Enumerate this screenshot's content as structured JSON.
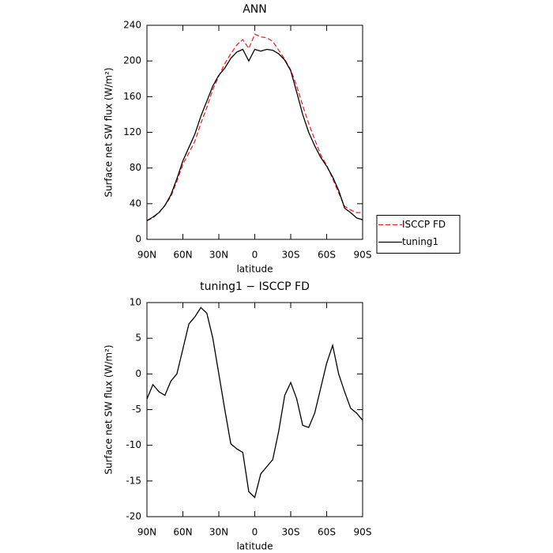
{
  "chart_data": [
    {
      "type": "line",
      "title": "ANN",
      "xlabel": "latitude",
      "ylabel": "Surface net SW flux (W/m²)",
      "x": [
        90,
        85,
        80,
        75,
        70,
        65,
        60,
        55,
        50,
        45,
        40,
        35,
        30,
        25,
        20,
        15,
        10,
        5,
        0,
        -5,
        -10,
        -15,
        -20,
        -25,
        -30,
        -35,
        -40,
        -45,
        -50,
        -55,
        -60,
        -65,
        -70,
        -75,
        -80,
        -85,
        -90
      ],
      "series": [
        {
          "name": "ISCCP FD",
          "color": "#e8282b",
          "style": "dashed",
          "values": [
            21,
            24,
            30,
            38,
            48,
            65,
            84,
            97,
            110,
            130,
            148,
            168,
            183,
            197,
            208,
            218,
            224,
            214,
            230,
            227,
            226,
            222,
            212,
            202,
            190,
            172,
            150,
            130,
            112,
            95,
            83,
            68,
            52,
            37,
            33,
            30,
            30
          ]
        },
        {
          "name": "tuning1",
          "color": "#000000",
          "style": "solid",
          "values": [
            21,
            25,
            30,
            38,
            50,
            68,
            88,
            103,
            118,
            138,
            155,
            172,
            184,
            192,
            203,
            210,
            213,
            200,
            213,
            211,
            213,
            212,
            208,
            201,
            189,
            165,
            140,
            120,
            105,
            92,
            82,
            70,
            55,
            35,
            30,
            24,
            22
          ]
        }
      ],
      "xlim": [
        90,
        -90
      ],
      "xticks": [
        {
          "value": 90,
          "label": "90N"
        },
        {
          "value": 60,
          "label": "60N"
        },
        {
          "value": 30,
          "label": "30N"
        },
        0,
        {
          "value": -30,
          "label": "30S"
        },
        {
          "value": -60,
          "label": "60S"
        },
        {
          "value": -90,
          "label": "90S"
        }
      ],
      "ylim": [
        0,
        240
      ],
      "yticks": [
        0,
        40,
        80,
        120,
        160,
        200,
        240
      ],
      "legend": "right"
    },
    {
      "type": "line",
      "title": "tuning1 − ISCCP FD",
      "xlabel": "latitude",
      "ylabel": "Surface net SW flux (W/m²)",
      "x": [
        90,
        85,
        80,
        75,
        70,
        65,
        60,
        55,
        50,
        45,
        40,
        35,
        30,
        25,
        20,
        15,
        10,
        5,
        0,
        -5,
        -10,
        -15,
        -20,
        -25,
        -30,
        -35,
        -40,
        -45,
        -50,
        -55,
        -60,
        -65,
        -70,
        -75,
        -80,
        -85,
        -90
      ],
      "color": "#000000",
      "values": [
        -3.5,
        -1.5,
        -2.5,
        -3,
        -1,
        0,
        3.5,
        7,
        8,
        9.3,
        8.5,
        5,
        0,
        -5,
        -9.8,
        -10.5,
        -11,
        -16.5,
        -17.3,
        -14,
        -13,
        -12,
        -8,
        -3,
        -1.2,
        -3.5,
        -7.2,
        -7.5,
        -5.5,
        -2,
        1.5,
        4,
        0,
        -2.5,
        -4.8,
        -5.5,
        -6.5
      ],
      "xlim": [
        90,
        -90
      ],
      "xticks": [
        {
          "value": 90,
          "label": "90N"
        },
        {
          "value": 60,
          "label": "60N"
        },
        {
          "value": 30,
          "label": "30N"
        },
        0,
        {
          "value": -30,
          "label": "30S"
        },
        {
          "value": -60,
          "label": "60S"
        },
        {
          "value": -90,
          "label": "90S"
        }
      ],
      "ylim": [
        -20,
        10
      ],
      "yticks": [
        -20,
        -15,
        -10,
        -5,
        0,
        5,
        10
      ]
    }
  ]
}
